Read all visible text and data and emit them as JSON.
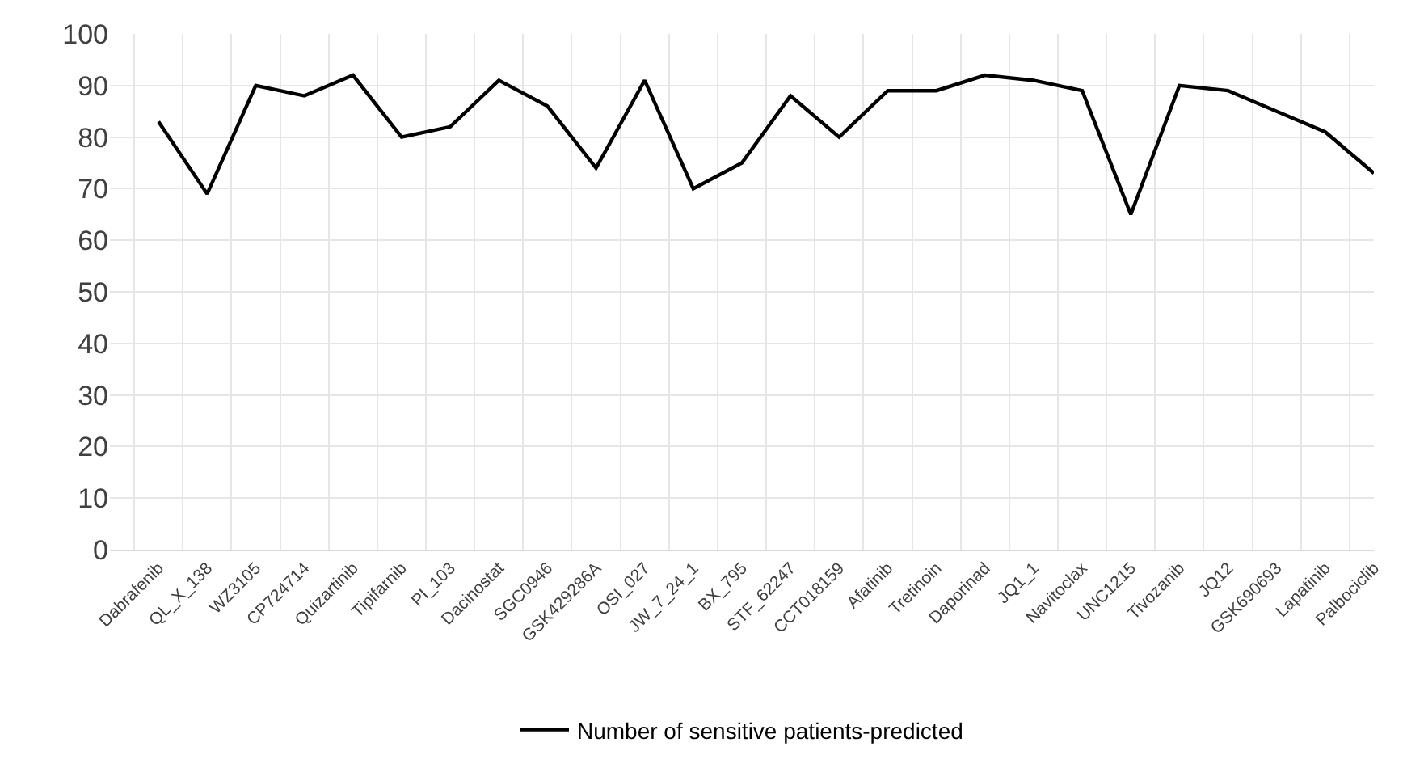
{
  "chart_data": {
    "type": "line",
    "categories": [
      null,
      "Dabrafenib",
      "QL_X_138",
      "WZ3105",
      "CP724714",
      "Quizartinib",
      "Tipifarnib",
      "PI_103",
      "Dacinostat",
      "SGC0946",
      "GSK429286A",
      "OSI_027",
      "JW_7_24_1",
      "BX_795",
      "STF_62247",
      "CCT018159",
      "Afatinib",
      "Tretinoin",
      "Daporinad",
      "JQ1_1",
      "Navitoclax",
      "UNC1215",
      "Tivozanib",
      "JQ12",
      "GSK690693",
      "Lapatinib",
      "Palbociclib"
    ],
    "series": [
      {
        "name": "Number of sensitive patients-predicted",
        "color": "#000000",
        "values": [
          null,
          83,
          69,
          90,
          88,
          92,
          80,
          82,
          91,
          86,
          74,
          91,
          70,
          75,
          88,
          80,
          89,
          89,
          92,
          91,
          89,
          65,
          90,
          89,
          85,
          81,
          73
        ]
      }
    ],
    "ylim": [
      0,
      100
    ],
    "yticks": [
      0,
      10,
      20,
      30,
      40,
      50,
      60,
      70,
      80,
      90,
      100
    ],
    "grid": true,
    "legend": "bottom",
    "marker": "none",
    "line_style": "solid"
  }
}
